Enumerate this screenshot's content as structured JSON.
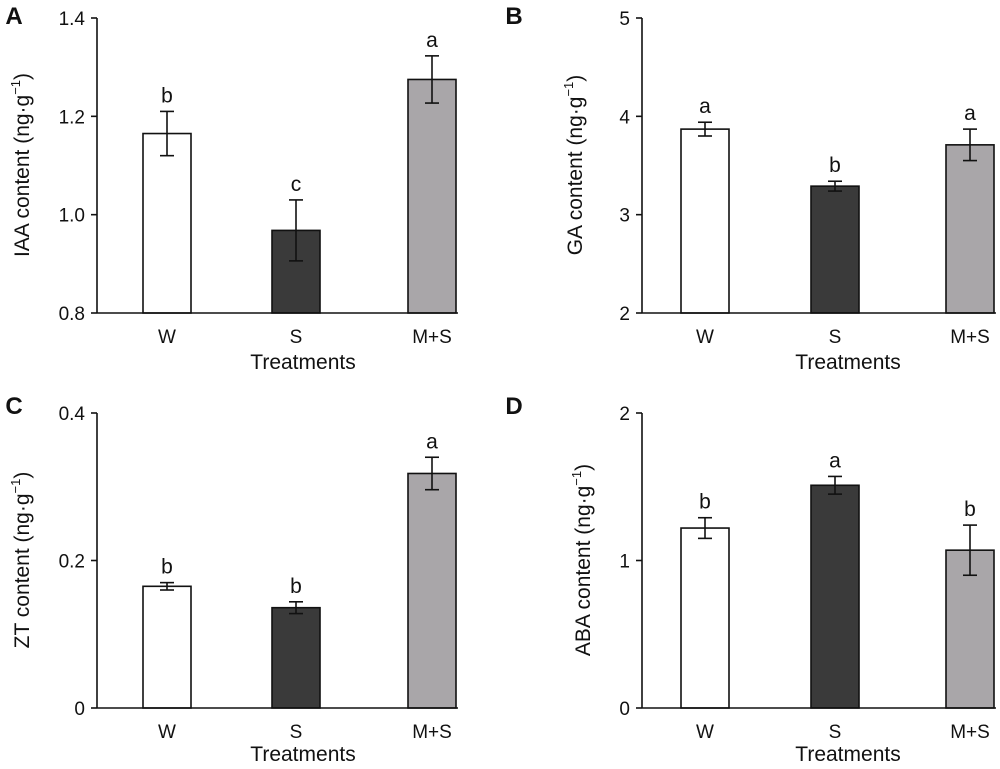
{
  "chart_data": [
    {
      "panel": "A",
      "type": "bar",
      "categories": [
        "W",
        "S",
        "M+S"
      ],
      "values": [
        1.165,
        0.968,
        1.275
      ],
      "errors": [
        0.045,
        0.062,
        0.048
      ],
      "significance": [
        "b",
        "c",
        "a"
      ],
      "colors": [
        "#ffffff",
        "#3a3a3a",
        "#a9a6a9"
      ],
      "xlabel": "Treatments",
      "ylabel_main": "IAA content (ng·g",
      "ylabel_sup": "−1",
      "ylabel_close": ")",
      "ylim": [
        0.8,
        1.4
      ],
      "ticks": [
        0.8,
        1.0,
        1.2,
        1.4
      ],
      "tick_labels": [
        "0.8",
        "1.0",
        "1.2",
        "1.4"
      ]
    },
    {
      "panel": "B",
      "type": "bar",
      "categories": [
        "W",
        "S",
        "M+S"
      ],
      "values": [
        3.87,
        3.29,
        3.71
      ],
      "errors": [
        0.07,
        0.05,
        0.16
      ],
      "significance": [
        "a",
        "b",
        "a"
      ],
      "colors": [
        "#ffffff",
        "#3a3a3a",
        "#a9a6a9"
      ],
      "xlabel": "Treatments",
      "ylabel_main": "GA content (ng·g",
      "ylabel_sup": "−1",
      "ylabel_close": ")",
      "ylim": [
        2,
        5
      ],
      "ticks": [
        2,
        3,
        4,
        5
      ],
      "tick_labels": [
        "2",
        "3",
        "4",
        "5"
      ]
    },
    {
      "panel": "C",
      "type": "bar",
      "categories": [
        "W",
        "S",
        "M+S"
      ],
      "values": [
        0.165,
        0.136,
        0.318
      ],
      "errors": [
        0.005,
        0.008,
        0.022
      ],
      "significance": [
        "b",
        "b",
        "a"
      ],
      "colors": [
        "#ffffff",
        "#3a3a3a",
        "#a9a6a9"
      ],
      "xlabel": "Treatments",
      "ylabel_main": "ZT content (ng·g",
      "ylabel_sup": "−1",
      "ylabel_close": ")",
      "ylim": [
        0,
        0.4
      ],
      "ticks": [
        0,
        0.2,
        0.4
      ],
      "tick_labels": [
        "0",
        "0.2",
        "0.4"
      ]
    },
    {
      "panel": "D",
      "type": "bar",
      "categories": [
        "W",
        "S",
        "M+S"
      ],
      "values": [
        1.22,
        1.51,
        1.07
      ],
      "errors": [
        0.07,
        0.06,
        0.17
      ],
      "significance": [
        "b",
        "a",
        "b"
      ],
      "colors": [
        "#ffffff",
        "#3a3a3a",
        "#a9a6a9"
      ],
      "xlabel": "Treatments",
      "ylabel_main": "ABA content (ng·g",
      "ylabel_sup": "−1",
      "ylabel_close": ")",
      "ylim": [
        0,
        2
      ],
      "ticks": [
        0,
        1,
        2
      ],
      "tick_labels": [
        "0",
        "1",
        "2"
      ]
    }
  ]
}
